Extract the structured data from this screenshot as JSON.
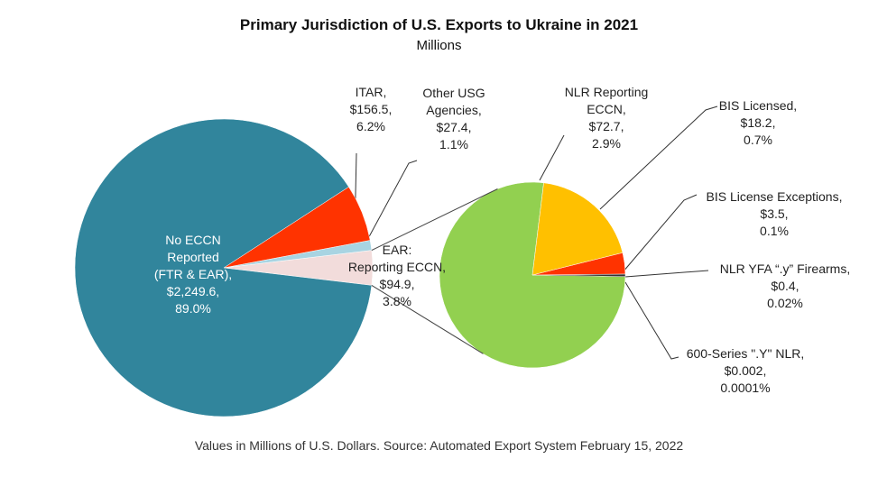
{
  "chart_data": {
    "type": "pie_of_pie",
    "title": "Primary Jurisdiction of U.S. Exports to Ukraine in 2021",
    "subtitle": "Millions",
    "footnote": "Values in Millions of U.S. Dollars.  Source: Automated Export System February 15, 2022",
    "pie": {
      "categories": [
        "No ECCN\nReported\n(FTR & EAR),",
        "ITAR,",
        "Other USG\nAgencies,",
        "EAR:\nReporting ECCN,"
      ],
      "values": [
        2249.6,
        156.5,
        27.4,
        94.9
      ],
      "value_labels": [
        "$2,249.6,",
        "$156.5,",
        "$27.4,",
        "$94.9,"
      ],
      "percents": [
        89.0,
        6.2,
        1.1,
        3.8
      ],
      "percent_labels": [
        "89.0%",
        "6.2%",
        "1.1%",
        "3.8%"
      ],
      "colors": [
        "#31859c",
        "#ff3300",
        "#a8d4e2",
        "#f2dcdb"
      ]
    },
    "secondary": {
      "categories": [
        "NLR Reporting\nECCN,",
        "BIS Licensed,",
        "BIS License Exceptions,",
        "NLR YFA “.y” Firearms,",
        "600-Series \".Y\" NLR,"
      ],
      "values": [
        72.7,
        18.2,
        3.5,
        0.4,
        0.002
      ],
      "value_labels": [
        "$72.7,",
        "$18.2,",
        "$3.5,",
        "$0.4,",
        "$0.002,"
      ],
      "percents": [
        2.9,
        0.7,
        0.1,
        0.02,
        0.0001
      ],
      "percent_labels": [
        "2.9%",
        "0.7%",
        "0.1%",
        "0.02%",
        "0.0001%"
      ],
      "colors": [
        "#92d050",
        "#ffc000",
        "#ff3300",
        "#333333",
        "#ffffff"
      ]
    }
  }
}
